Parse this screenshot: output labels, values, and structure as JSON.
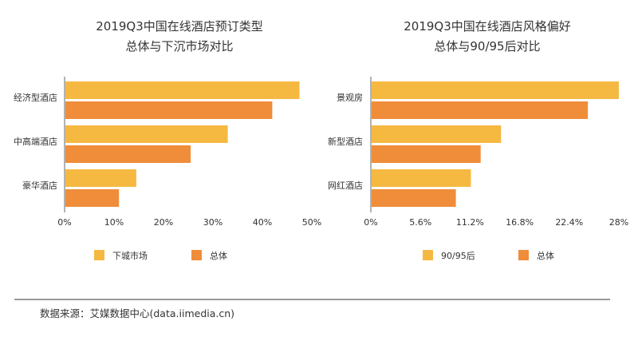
{
  "colors": {
    "series_a": "#F5B942",
    "series_b": "#EF8D3A",
    "axis": "#666666",
    "text": "#333333"
  },
  "chart_data": [
    {
      "type": "bar",
      "orientation": "horizontal",
      "title": "2019Q3中国在线酒店预订类型",
      "subtitle": "总体与下沉市场对比",
      "categories": [
        "经济型酒店",
        "中高端酒店",
        "豪华酒店"
      ],
      "series": [
        {
          "name": "下城市场",
          "values": [
            47.5,
            33.0,
            14.5
          ]
        },
        {
          "name": "总体",
          "values": [
            42.0,
            25.5,
            11.0
          ]
        }
      ],
      "xlim": [
        0,
        50
      ],
      "xticks": [
        "0%",
        "10%",
        "20%",
        "30%",
        "40%",
        "50%"
      ],
      "xlabel": "",
      "ylabel": "",
      "grid": false,
      "legend_position": "bottom"
    },
    {
      "type": "bar",
      "orientation": "horizontal",
      "title": "2019Q3中国在线酒店风格偏好",
      "subtitle": "总体与90/95后对比",
      "categories": [
        "景观房",
        "新型酒店",
        "网红酒店"
      ],
      "series": [
        {
          "name": "90/95后",
          "values": [
            28.0,
            14.7,
            11.3
          ]
        },
        {
          "name": "总体",
          "values": [
            24.5,
            12.4,
            9.6
          ]
        }
      ],
      "xlim": [
        0,
        28
      ],
      "xticks": [
        "0%",
        "5.6%",
        "11.2%",
        "16.8%",
        "22.4%",
        "28%"
      ],
      "xlabel": "",
      "ylabel": "",
      "grid": false,
      "legend_position": "bottom"
    }
  ],
  "footer": {
    "source": "数据来源：艾媒数据中心(data.iimedia.cn)"
  }
}
